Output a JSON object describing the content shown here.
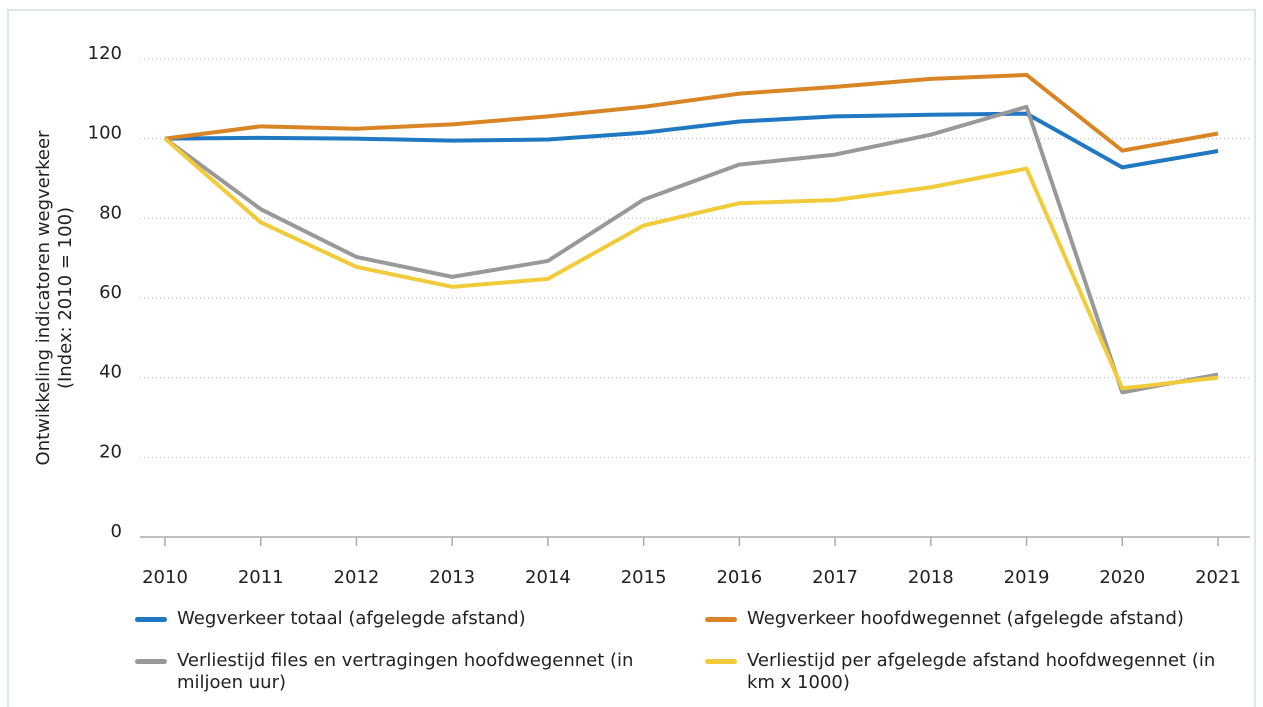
{
  "chart_data": {
    "type": "line",
    "ylabel": [
      "Ontwikkeling indicatoren wegverkeer",
      "(Index: 2010 = 100)"
    ],
    "categories": [
      "2010",
      "2011",
      "2012",
      "2013",
      "2014",
      "2015",
      "2016",
      "2017",
      "2018",
      "2019",
      "2020",
      "2021"
    ],
    "ylim": [
      0,
      120
    ],
    "yticks": [
      0,
      20,
      40,
      60,
      80,
      100,
      120
    ],
    "grid": true,
    "series": [
      {
        "name": "Wegverkeer totaal (afgelegde afstand)",
        "color": "#1f78c1",
        "values": [
          100,
          100.2,
          100,
          99.5,
          99.8,
          101.5,
          104.3,
          105.6,
          106,
          106.3,
          92.8,
          96.9
        ]
      },
      {
        "name": "Wegverkeer hoofdwegennet (afgelegde afstand)",
        "color": "#d98526",
        "values": [
          100,
          103.1,
          102.5,
          103.6,
          105.6,
          108,
          111.3,
          113,
          115,
          116,
          97,
          101.3
        ]
      },
      {
        "name": "Verliestijd files en vertragingen hoofdwegennet (in miljoen uur)",
        "color": "#999999",
        "values": [
          100,
          82.3,
          70.3,
          65.3,
          69.3,
          84.7,
          93.5,
          96,
          101,
          108,
          36.3,
          40.8
        ]
      },
      {
        "name": "Verliestijd per afgelegde afstand hoofdwegennet (in km x 1000)",
        "color": "#f2cb3a",
        "values": [
          100,
          79,
          67.8,
          62.8,
          64.8,
          78.2,
          83.8,
          84.6,
          87.8,
          92.5,
          37.3,
          40
        ]
      }
    ]
  }
}
